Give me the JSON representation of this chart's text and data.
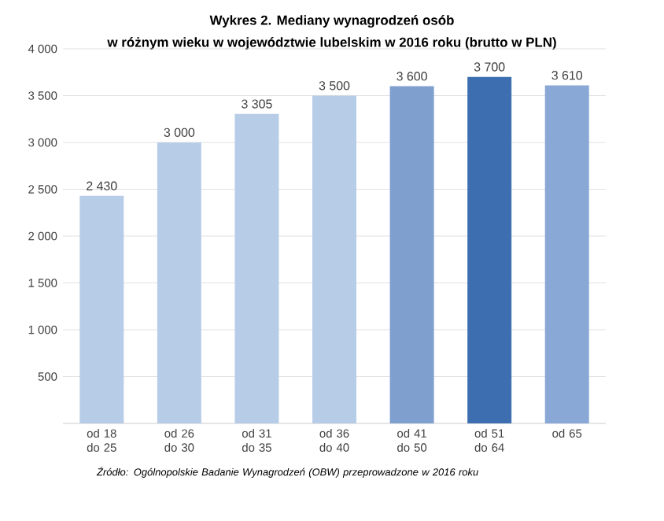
{
  "chart_data": {
    "type": "bar",
    "title": "Wykres 2. Mediany wynagrodzeń osób",
    "subtitle": "w różnym wieku w województwie lubelskim w 2016 roku (brutto w PLN)",
    "categories": [
      "od 18 do 25",
      "od 26 do 30",
      "od 31 do 35",
      "od 36 do 40",
      "od 41 do 50",
      "od 51 do 64",
      "od 65"
    ],
    "values": [
      2430,
      3000,
      3305,
      3500,
      3600,
      3700,
      3610
    ],
    "value_labels": [
      "2 430",
      "3 000",
      "3 305",
      "3 500",
      "3 600",
      "3 700",
      "3 610"
    ],
    "colors": [
      "#b7cce6",
      "#b7cce6",
      "#b7cce6",
      "#b7cce6",
      "#7f9fcf",
      "#3d6fb0",
      "#8aa8d6"
    ],
    "ylim": [
      0,
      4000
    ],
    "yticks": [
      {
        "value": 500,
        "label": "500"
      },
      {
        "value": 1000,
        "label": "1 000"
      },
      {
        "value": 1500,
        "label": "1 500"
      },
      {
        "value": 2000,
        "label": "2 000"
      },
      {
        "value": 2500,
        "label": "2 500"
      },
      {
        "value": 3000,
        "label": "3 000"
      },
      {
        "value": 3500,
        "label": "3 500"
      },
      {
        "value": 4000,
        "label": "4 000"
      }
    ],
    "grid": "y",
    "annotations": [
      "Źródło: Ogólnopolskie Badanie Wynagrodzeń (OBW) przeprowadzone w 2016 roku"
    ]
  }
}
